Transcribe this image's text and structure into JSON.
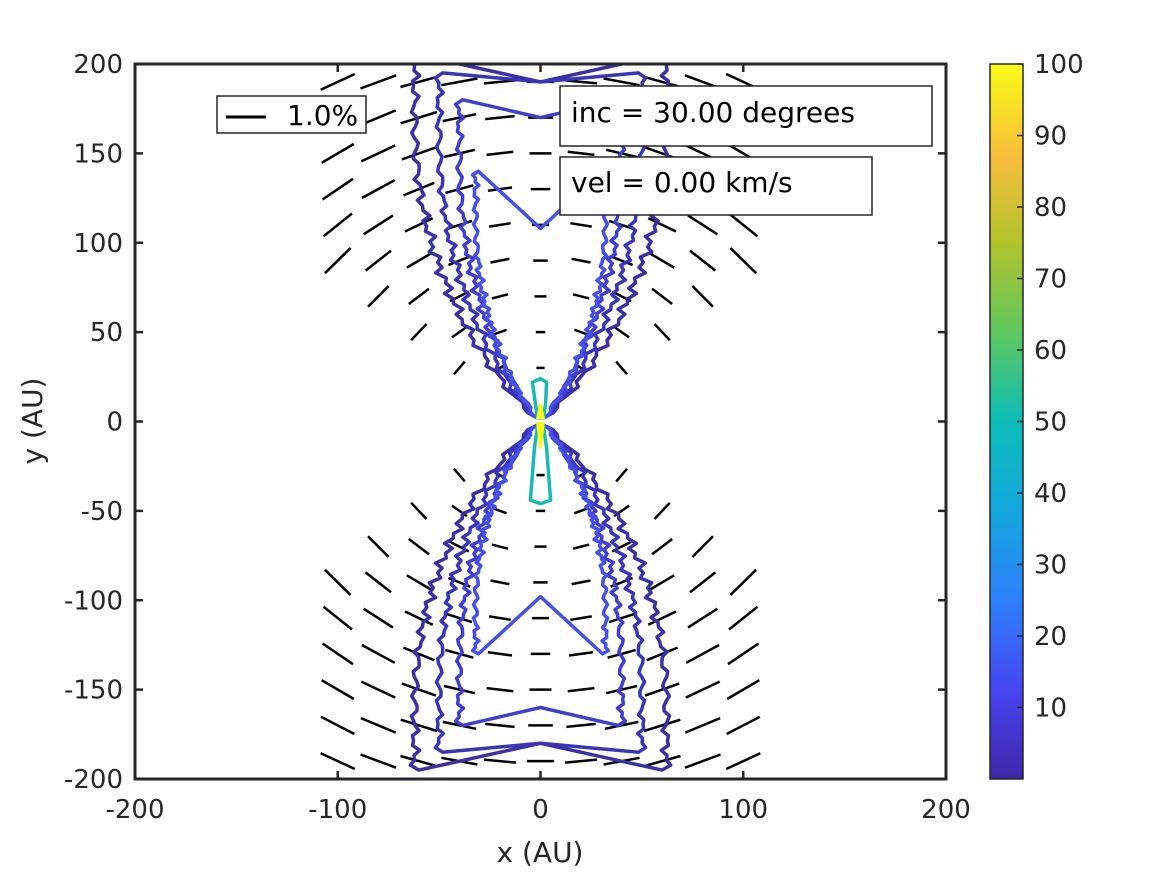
{
  "chart_data": {
    "type": "contour",
    "xlabel": "x (AU)",
    "ylabel": "y (AU)",
    "xlim": [
      -200,
      200
    ],
    "ylim": [
      -200,
      200
    ],
    "x_ticks": [
      "-200",
      "-100",
      "0",
      "100",
      "200"
    ],
    "y_ticks": [
      "200",
      "150",
      "100",
      "50",
      "0",
      "-50",
      "-100",
      "-150",
      "-200"
    ],
    "colorbar": {
      "range": [
        0,
        100
      ],
      "ticks": [
        "100",
        "90",
        "80",
        "70",
        "60",
        "50",
        "40",
        "30",
        "20",
        "10"
      ],
      "colors": [
        "#3e26a8",
        "#4743f0",
        "#2b88fd",
        "#15aed6",
        "#16c1b3",
        "#5bc863",
        "#aec635",
        "#f6b943",
        "#f9d829",
        "#f9fb15"
      ]
    },
    "legend": {
      "label": "1.0%"
    },
    "annotations": [
      "inc = 30.00 degrees",
      "vel =  0.00 km/s"
    ],
    "contour_levels": [
      {
        "level": 2,
        "color": "#3b2fa8"
      },
      {
        "level": 4,
        "color": "#3a35b8"
      },
      {
        "level": 7,
        "color": "#3f3ed0"
      },
      {
        "level": 12,
        "color": "#4550e8"
      },
      {
        "level": 50,
        "color": "#1ab9b6"
      },
      {
        "level": 100,
        "color": "#f9fb15"
      }
    ],
    "polarization_rows_y": [
      190,
      170,
      150,
      130,
      110,
      90,
      70,
      50,
      30,
      -30,
      -50,
      -70,
      -90,
      -110,
      -130,
      -150,
      -170,
      -190
    ]
  }
}
